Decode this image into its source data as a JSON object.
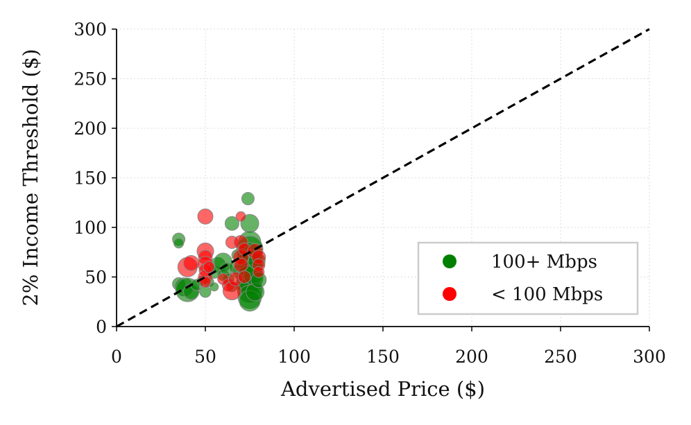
{
  "chart_data": {
    "type": "scatter",
    "title": "",
    "xlabel": "Advertised Price ($)",
    "ylabel": "2% Income Threshold ($)",
    "xlim": [
      0,
      300
    ],
    "ylim": [
      0,
      300
    ],
    "xticks": [
      "0",
      "50",
      "100",
      "150",
      "200",
      "250",
      "300"
    ],
    "yticks": [
      "0",
      "50",
      "100",
      "150",
      "200",
      "250",
      "300"
    ],
    "grid": true,
    "legend_position": "bottom-right",
    "reference_line": {
      "style": "dashed",
      "color": "#000000",
      "x": [
        0,
        300
      ],
      "y": [
        0,
        300
      ]
    },
    "series": [
      {
        "name": "100+ Mbps",
        "color": "#008000",
        "points": [
          {
            "x": 35,
            "y": 88,
            "size": 9
          },
          {
            "x": 35,
            "y": 84,
            "size": 7
          },
          {
            "x": 35,
            "y": 43,
            "size": 9
          },
          {
            "x": 38,
            "y": 40,
            "size": 13
          },
          {
            "x": 40,
            "y": 37,
            "size": 17
          },
          {
            "x": 42,
            "y": 35,
            "size": 11
          },
          {
            "x": 45,
            "y": 42,
            "size": 8
          },
          {
            "x": 48,
            "y": 46,
            "size": 7
          },
          {
            "x": 50,
            "y": 35,
            "size": 8
          },
          {
            "x": 52,
            "y": 45,
            "size": 7
          },
          {
            "x": 55,
            "y": 40,
            "size": 6
          },
          {
            "x": 55,
            "y": 55,
            "size": 9
          },
          {
            "x": 57,
            "y": 62,
            "size": 11
          },
          {
            "x": 60,
            "y": 65,
            "size": 13
          },
          {
            "x": 60,
            "y": 52,
            "size": 8
          },
          {
            "x": 62,
            "y": 58,
            "size": 9
          },
          {
            "x": 63,
            "y": 48,
            "size": 8
          },
          {
            "x": 65,
            "y": 104,
            "size": 10
          },
          {
            "x": 65,
            "y": 40,
            "size": 7
          },
          {
            "x": 67,
            "y": 60,
            "size": 9
          },
          {
            "x": 68,
            "y": 72,
            "size": 8
          },
          {
            "x": 70,
            "y": 56,
            "size": 12
          },
          {
            "x": 70,
            "y": 42,
            "size": 8
          },
          {
            "x": 72,
            "y": 66,
            "size": 10
          },
          {
            "x": 74,
            "y": 129,
            "size": 9
          },
          {
            "x": 75,
            "y": 104,
            "size": 13
          },
          {
            "x": 75,
            "y": 85,
            "size": 16
          },
          {
            "x": 75,
            "y": 78,
            "size": 19
          },
          {
            "x": 75,
            "y": 72,
            "size": 18
          },
          {
            "x": 75,
            "y": 66,
            "size": 17
          },
          {
            "x": 75,
            "y": 60,
            "size": 18
          },
          {
            "x": 75,
            "y": 55,
            "size": 16
          },
          {
            "x": 75,
            "y": 49,
            "size": 19
          },
          {
            "x": 75,
            "y": 43,
            "size": 16
          },
          {
            "x": 75,
            "y": 37,
            "size": 18
          },
          {
            "x": 75,
            "y": 30,
            "size": 17
          },
          {
            "x": 75,
            "y": 26,
            "size": 15
          },
          {
            "x": 77,
            "y": 52,
            "size": 14
          },
          {
            "x": 78,
            "y": 35,
            "size": 13
          },
          {
            "x": 79,
            "y": 66,
            "size": 12
          },
          {
            "x": 80,
            "y": 47,
            "size": 11
          }
        ]
      },
      {
        "name": "< 100 Mbps",
        "color": "#ff0000",
        "points": [
          {
            "x": 40,
            "y": 60,
            "size": 14
          },
          {
            "x": 42,
            "y": 64,
            "size": 11
          },
          {
            "x": 50,
            "y": 111,
            "size": 11
          },
          {
            "x": 50,
            "y": 76,
            "size": 12
          },
          {
            "x": 50,
            "y": 70,
            "size": 10
          },
          {
            "x": 50,
            "y": 63,
            "size": 11
          },
          {
            "x": 50,
            "y": 57,
            "size": 9
          },
          {
            "x": 50,
            "y": 50,
            "size": 10
          },
          {
            "x": 50,
            "y": 45,
            "size": 8
          },
          {
            "x": 52,
            "y": 60,
            "size": 8
          },
          {
            "x": 60,
            "y": 48,
            "size": 8
          },
          {
            "x": 63,
            "y": 42,
            "size": 9
          },
          {
            "x": 65,
            "y": 36,
            "size": 13
          },
          {
            "x": 65,
            "y": 85,
            "size": 9
          },
          {
            "x": 67,
            "y": 48,
            "size": 10
          },
          {
            "x": 70,
            "y": 111,
            "size": 7
          },
          {
            "x": 70,
            "y": 85,
            "size": 10
          },
          {
            "x": 70,
            "y": 70,
            "size": 11
          },
          {
            "x": 70,
            "y": 62,
            "size": 10
          },
          {
            "x": 72,
            "y": 78,
            "size": 9
          },
          {
            "x": 72,
            "y": 50,
            "size": 9
          },
          {
            "x": 78,
            "y": 76,
            "size": 11
          },
          {
            "x": 80,
            "y": 70,
            "size": 10
          },
          {
            "x": 80,
            "y": 62,
            "size": 9
          },
          {
            "x": 80,
            "y": 55,
            "size": 8
          }
        ]
      }
    ]
  }
}
